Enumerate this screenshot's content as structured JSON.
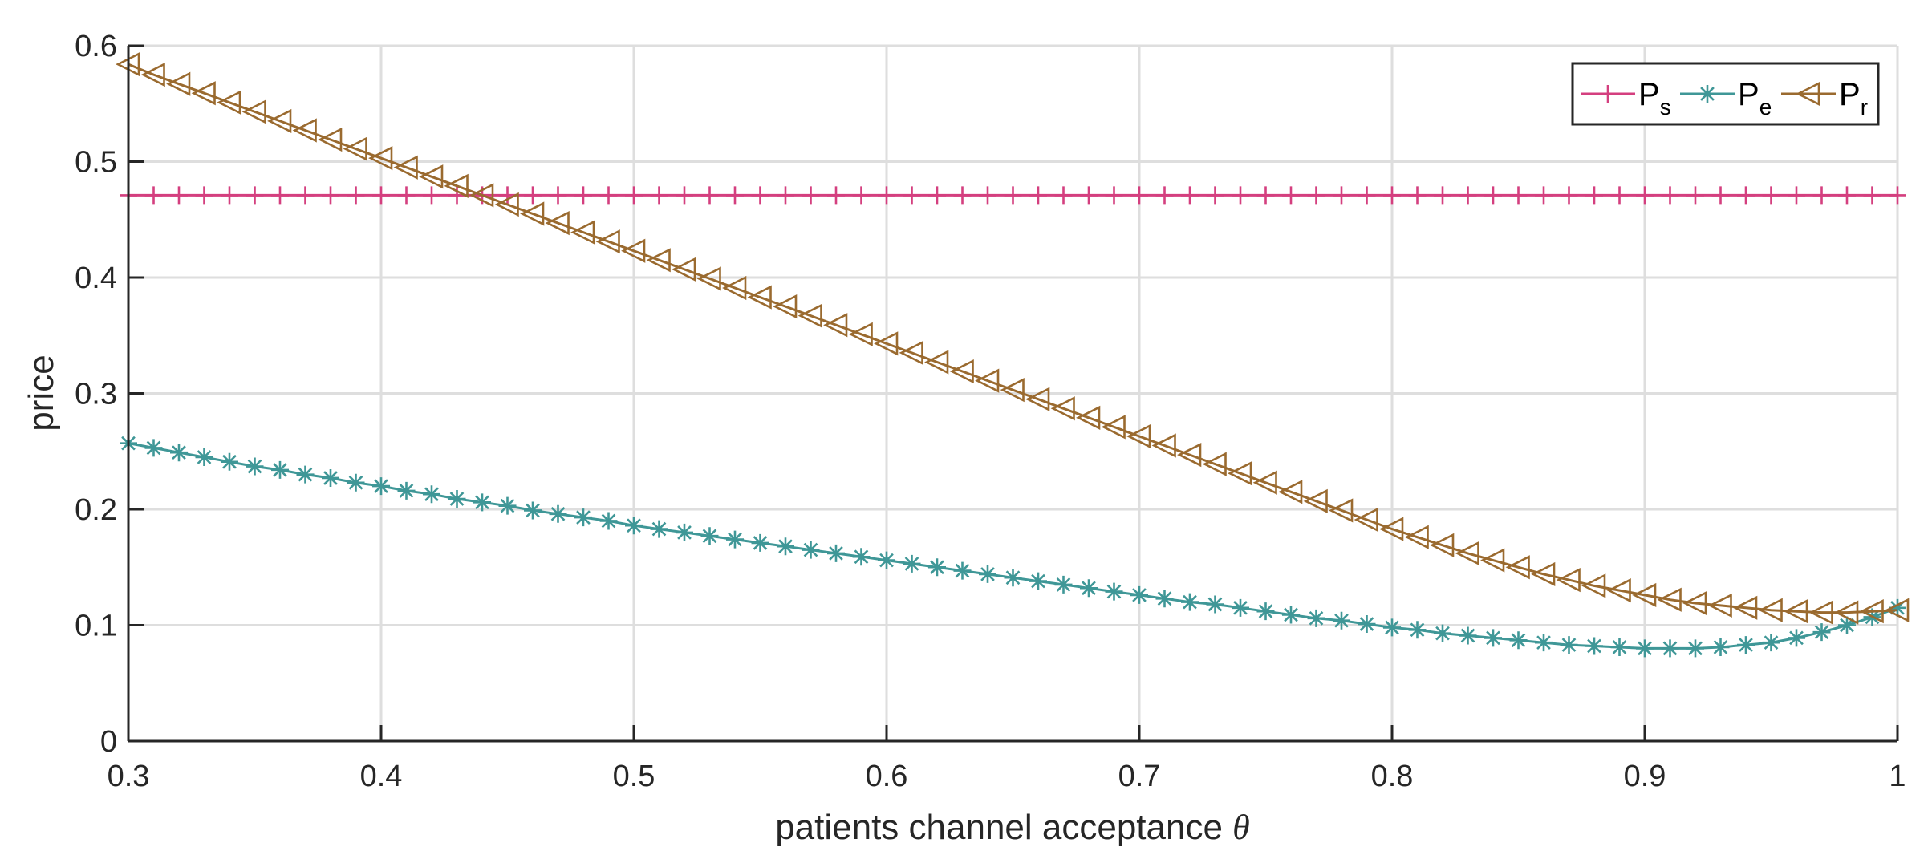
{
  "chart_data": {
    "type": "line",
    "title": "",
    "xlabel": "patients channel acceptance",
    "xlabel_symbol": "θ",
    "ylabel": "price",
    "xlim": [
      0.3,
      1.0
    ],
    "ylim": [
      0,
      0.6
    ],
    "xticks": [
      "0.3",
      "0.4",
      "0.5",
      "0.6",
      "0.7",
      "0.8",
      "0.9",
      "1"
    ],
    "yticks": [
      "0",
      "0.1",
      "0.2",
      "0.3",
      "0.4",
      "0.5",
      "0.6"
    ],
    "grid": true,
    "legend_position": "top-right",
    "x": [
      0.3,
      0.31,
      0.32,
      0.33,
      0.34,
      0.35,
      0.36,
      0.37,
      0.38,
      0.39,
      0.4,
      0.41,
      0.42,
      0.43,
      0.44,
      0.45,
      0.46,
      0.47,
      0.48,
      0.49,
      0.5,
      0.51,
      0.52,
      0.53,
      0.54,
      0.55,
      0.56,
      0.57,
      0.58,
      0.59,
      0.6,
      0.61,
      0.62,
      0.63,
      0.64,
      0.65,
      0.66,
      0.67,
      0.68,
      0.69,
      0.7,
      0.71,
      0.72,
      0.73,
      0.74,
      0.75,
      0.76,
      0.77,
      0.78,
      0.79,
      0.8,
      0.81,
      0.82,
      0.83,
      0.84,
      0.85,
      0.86,
      0.87,
      0.88,
      0.89,
      0.9,
      0.91,
      0.92,
      0.93,
      0.94,
      0.95,
      0.96,
      0.97,
      0.98,
      0.99,
      1.0
    ],
    "series": [
      {
        "name": "P",
        "sub": "s",
        "color": "#d43f7f",
        "marker": "plus",
        "values": [
          0.471,
          0.471,
          0.471,
          0.471,
          0.471,
          0.471,
          0.471,
          0.471,
          0.471,
          0.471,
          0.471,
          0.471,
          0.471,
          0.471,
          0.471,
          0.471,
          0.471,
          0.471,
          0.471,
          0.471,
          0.471,
          0.471,
          0.471,
          0.471,
          0.471,
          0.471,
          0.471,
          0.471,
          0.471,
          0.471,
          0.471,
          0.471,
          0.471,
          0.471,
          0.471,
          0.471,
          0.471,
          0.471,
          0.471,
          0.471,
          0.471,
          0.471,
          0.471,
          0.471,
          0.471,
          0.471,
          0.471,
          0.471,
          0.471,
          0.471,
          0.471,
          0.471,
          0.471,
          0.471,
          0.471,
          0.471,
          0.471,
          0.471,
          0.471,
          0.471,
          0.471,
          0.471,
          0.471,
          0.471,
          0.471,
          0.471,
          0.471,
          0.471,
          0.471,
          0.471,
          0.471
        ]
      },
      {
        "name": "P",
        "sub": "e",
        "color": "#3f9797",
        "marker": "asterisk",
        "values": [
          0.257,
          0.253,
          0.249,
          0.245,
          0.241,
          0.237,
          0.234,
          0.23,
          0.227,
          0.223,
          0.22,
          0.216,
          0.213,
          0.209,
          0.206,
          0.203,
          0.199,
          0.196,
          0.193,
          0.19,
          0.186,
          0.183,
          0.18,
          0.177,
          0.174,
          0.171,
          0.168,
          0.165,
          0.162,
          0.159,
          0.156,
          0.153,
          0.15,
          0.147,
          0.144,
          0.141,
          0.138,
          0.135,
          0.132,
          0.129,
          0.126,
          0.123,
          0.12,
          0.118,
          0.115,
          0.112,
          0.109,
          0.106,
          0.104,
          0.101,
          0.098,
          0.096,
          0.093,
          0.091,
          0.089,
          0.087,
          0.085,
          0.083,
          0.082,
          0.081,
          0.08,
          0.08,
          0.08,
          0.081,
          0.083,
          0.085,
          0.089,
          0.094,
          0.1,
          0.107,
          0.115
        ]
      },
      {
        "name": "P",
        "sub": "r",
        "color": "#9a6a2f",
        "marker": "triangle-left",
        "values": [
          0.584,
          0.575,
          0.567,
          0.559,
          0.551,
          0.543,
          0.535,
          0.527,
          0.519,
          0.511,
          0.503,
          0.495,
          0.487,
          0.479,
          0.471,
          0.463,
          0.455,
          0.447,
          0.439,
          0.431,
          0.423,
          0.415,
          0.407,
          0.399,
          0.391,
          0.383,
          0.375,
          0.367,
          0.359,
          0.351,
          0.343,
          0.335,
          0.327,
          0.319,
          0.311,
          0.303,
          0.295,
          0.287,
          0.279,
          0.271,
          0.263,
          0.255,
          0.247,
          0.239,
          0.231,
          0.223,
          0.215,
          0.207,
          0.199,
          0.191,
          0.183,
          0.176,
          0.169,
          0.162,
          0.156,
          0.15,
          0.144,
          0.139,
          0.134,
          0.13,
          0.126,
          0.122,
          0.119,
          0.117,
          0.115,
          0.113,
          0.112,
          0.111,
          0.111,
          0.112,
          0.113
        ]
      }
    ]
  }
}
